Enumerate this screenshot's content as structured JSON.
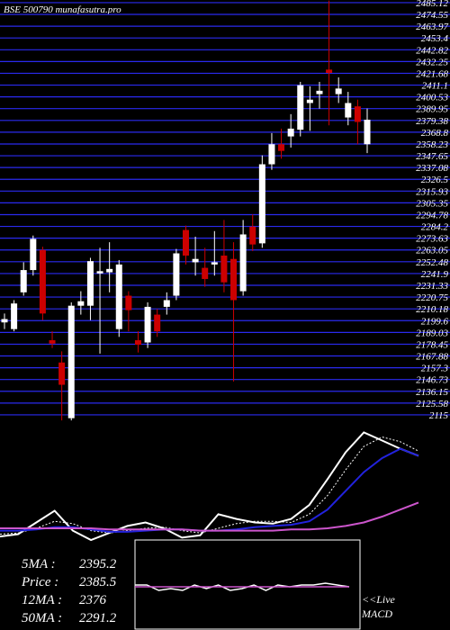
{
  "chart_data": {
    "type": "candlestick",
    "title": "BSE 500790 munafasutra.pro",
    "ylim": [
      2109.3,
      2487.5
    ],
    "yticks": [
      2115,
      2125.58,
      2136.15,
      2146.73,
      2157.3,
      2167.88,
      2178.45,
      2189.03,
      2199.6,
      2210.18,
      2220.75,
      2231.33,
      2241.9,
      2252.48,
      2263.05,
      2273.63,
      2284.2,
      2294.78,
      2305.35,
      2315.93,
      2326.5,
      2337.08,
      2347.65,
      2358.23,
      2368.8,
      2379.38,
      2389.95,
      2400.53,
      2411.1,
      2421.68,
      2432.25,
      2442.82,
      2453.4,
      2463.97,
      2474.55,
      2485.12
    ],
    "grid": true,
    "grid_color": "#2a2aee",
    "up_color": "#ffffff",
    "down_color": "#cc0000",
    "open": [
      2198,
      2192,
      2225,
      2245,
      2263,
      2182,
      2162,
      2112,
      2213,
      2213,
      2242,
      2243,
      2192,
      2222,
      2182,
      2180,
      2205,
      2212,
      2222,
      2281,
      2252,
      2247,
      2250,
      2258,
      2255,
      2226,
      2284,
      2269,
      2340,
      2358,
      2365,
      2371,
      2395,
      2403,
      2425,
      2403,
      2382,
      2392,
      2358
    ],
    "high": [
      2206,
      2218,
      2252,
      2276,
      2266,
      2190,
      2172,
      2216,
      2226,
      2256,
      2265,
      2270,
      2254,
      2226,
      2190,
      2216,
      2210,
      2225,
      2264,
      2285,
      2275,
      2265,
      2280,
      2290,
      2270,
      2290,
      2295,
      2348,
      2368,
      2372,
      2385,
      2414,
      2410,
      2414,
      2487,
      2418,
      2405,
      2398,
      2390
    ],
    "low": [
      2192,
      2190,
      2222,
      2240,
      2200,
      2175,
      2110,
      2110,
      2205,
      2200,
      2170,
      2225,
      2185,
      2190,
      2171,
      2175,
      2185,
      2205,
      2218,
      2250,
      2240,
      2230,
      2240,
      2225,
      2145,
      2222,
      2262,
      2265,
      2335,
      2345,
      2355,
      2365,
      2370,
      2390,
      2375,
      2395,
      2375,
      2358,
      2350
    ],
    "close": [
      2201,
      2215,
      2245,
      2273,
      2206,
      2179,
      2142,
      2213,
      2217,
      2253,
      2244,
      2246,
      2250,
      2209,
      2178,
      2212,
      2190,
      2218,
      2260,
      2258,
      2255,
      2237,
      2252,
      2234,
      2218,
      2277,
      2268,
      2340,
      2358,
      2352,
      2372,
      2411,
      2398,
      2406,
      2422,
      2408,
      2395,
      2378,
      2380
    ],
    "indicator": {
      "ylim": [
        0,
        100
      ],
      "series": [
        {
          "name": "Price",
          "color": "#ffffff",
          "values": [
            3,
            5,
            15,
            25,
            8,
            0,
            6,
            12,
            15,
            10,
            2,
            4,
            22,
            18,
            15,
            14,
            18,
            30,
            52,
            75,
            92,
            85,
            78,
            72
          ]
        },
        {
          "name": "5MA",
          "color": "#ffffff",
          "dashed": true,
          "values": [
            5,
            6,
            10,
            16,
            14,
            8,
            6,
            8,
            10,
            11,
            8,
            6,
            10,
            14,
            16,
            16,
            15,
            22,
            38,
            60,
            80,
            88,
            84,
            76
          ]
        },
        {
          "name": "12MA",
          "color": "#2222dd",
          "values": [
            8,
            8,
            9,
            11,
            11,
            9,
            7,
            7,
            8,
            9,
            9,
            8,
            8,
            9,
            11,
            12,
            13,
            16,
            26,
            42,
            58,
            70,
            78,
            72
          ]
        },
        {
          "name": "50MA",
          "color": "#cc55cc",
          "values": [
            10,
            10,
            10,
            10,
            10,
            10,
            9,
            9,
            9,
            9,
            9,
            8,
            8,
            8,
            8,
            8,
            9,
            9,
            10,
            12,
            15,
            20,
            26,
            32
          ]
        }
      ]
    },
    "macd": {
      "ylim": [
        0,
        100
      ],
      "label": "<<Live MACD",
      "series": [
        {
          "color": "#ffffff",
          "values": [
            50,
            50,
            44,
            46,
            44,
            50,
            46,
            50,
            44,
            46,
            50,
            44,
            50,
            48,
            50,
            50,
            52,
            50,
            48
          ]
        },
        {
          "color": "#cc55cc",
          "values": [
            48,
            48
          ]
        }
      ]
    },
    "stats": [
      {
        "label": "5MA :",
        "value": 2395.2
      },
      {
        "label": "Price :",
        "value": 2385.5
      },
      {
        "label": "12MA :",
        "value": 2376
      },
      {
        "label": "50MA :",
        "value": 2291.2
      }
    ]
  }
}
